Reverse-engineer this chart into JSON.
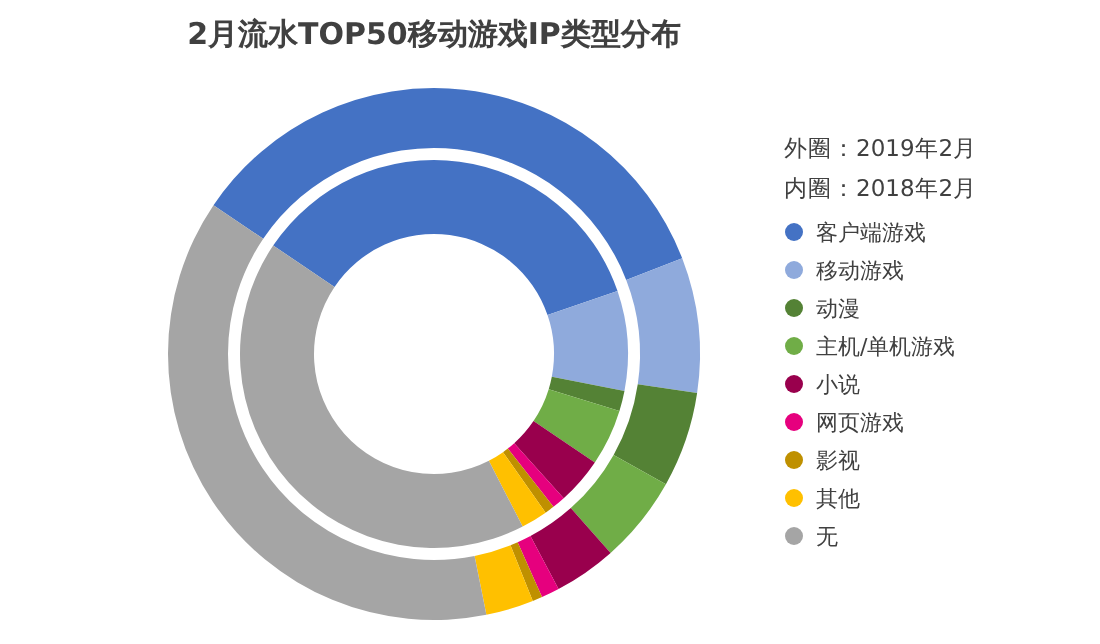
{
  "chart_data": {
    "type": "donut",
    "title": "2月流水TOP50移动游戏IP类型分布",
    "categories": [
      "客户端游戏",
      "移动游戏",
      "动漫",
      "主机/单机游戏",
      "小说",
      "网页游戏",
      "影视",
      "其他",
      "无"
    ],
    "colors": [
      "#4472c4",
      "#8faadc",
      "#548235",
      "#70ad47",
      "#99004d",
      "#e6007e",
      "#bf9000",
      "#ffc000",
      "#a5a5a5"
    ],
    "series": [
      {
        "values": [
          34.7,
          8.2,
          5.8,
          5.3,
          3.8,
          1.1,
          0.6,
          2.9,
          37.6
        ]
      },
      {
        "values": [
          35.3,
          8.3,
          1.7,
          4.7,
          3.9,
          1.1,
          0.8,
          2.2,
          42.0
        ]
      }
    ],
    "annotations": [
      "外圈：2019年2月",
      "内圈：2018年2月"
    ],
    "legend": "right"
  }
}
